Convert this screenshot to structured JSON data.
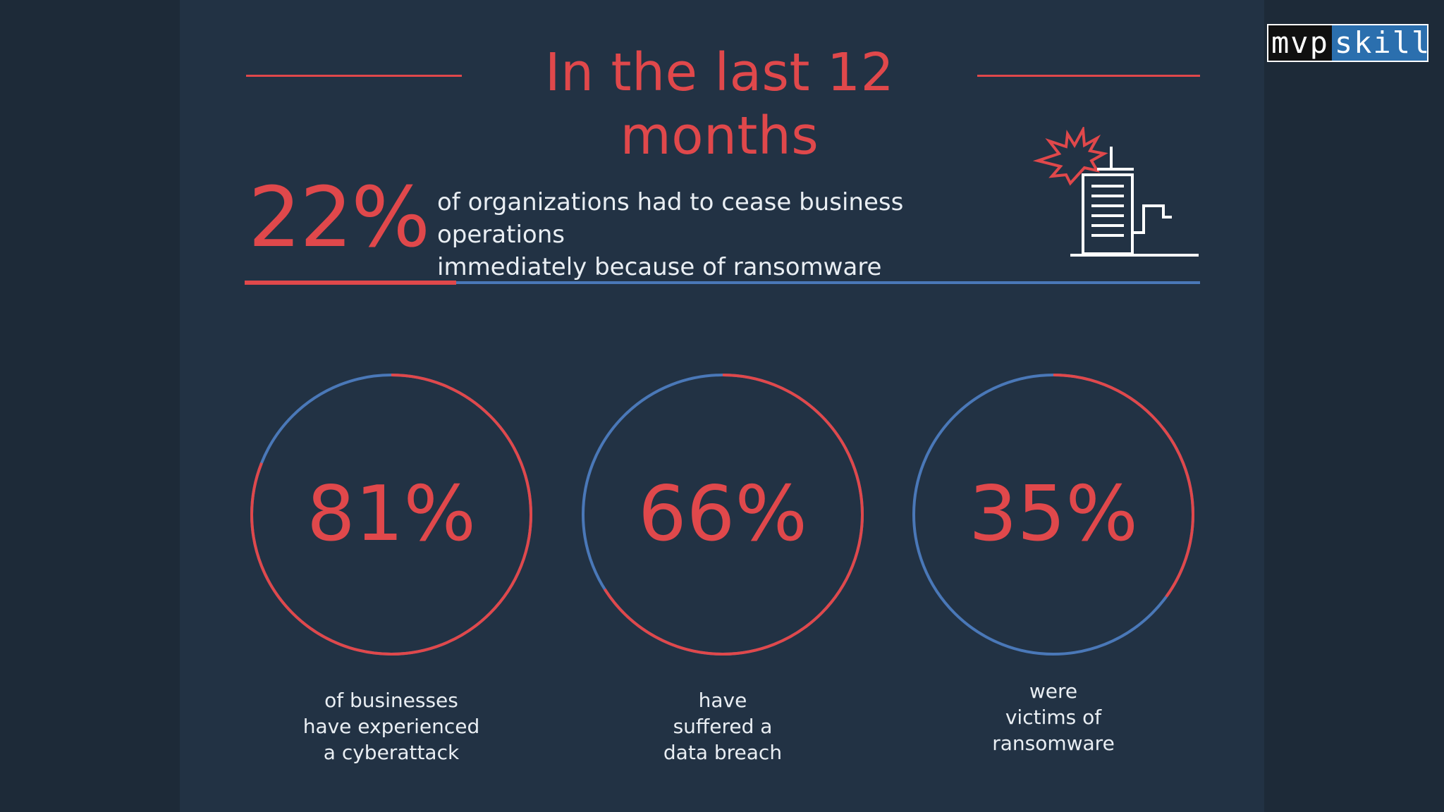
{
  "title": "In the last 12 months",
  "logo": {
    "mvp": "mvp",
    "skill": "skill"
  },
  "headline": {
    "value": "22%",
    "line1": "of organizations had to cease business operations",
    "line2": "immediately because of ransomware",
    "icon": "building-explosion-icon"
  },
  "stats": [
    {
      "value": "81%",
      "percent": 81,
      "lines": [
        "of businesses",
        "have experienced",
        "a cyberattack"
      ]
    },
    {
      "value": "66%",
      "percent": 66,
      "lines": [
        "have",
        "suffered a",
        "data breach"
      ]
    },
    {
      "value": "35%",
      "percent": 35,
      "lines": [
        "were",
        "victims of",
        "ransomware"
      ]
    }
  ],
  "colors": {
    "background": "#223244",
    "accent_red": "#e0484b",
    "accent_blue": "#4a78b8",
    "text": "#e9eef3"
  }
}
